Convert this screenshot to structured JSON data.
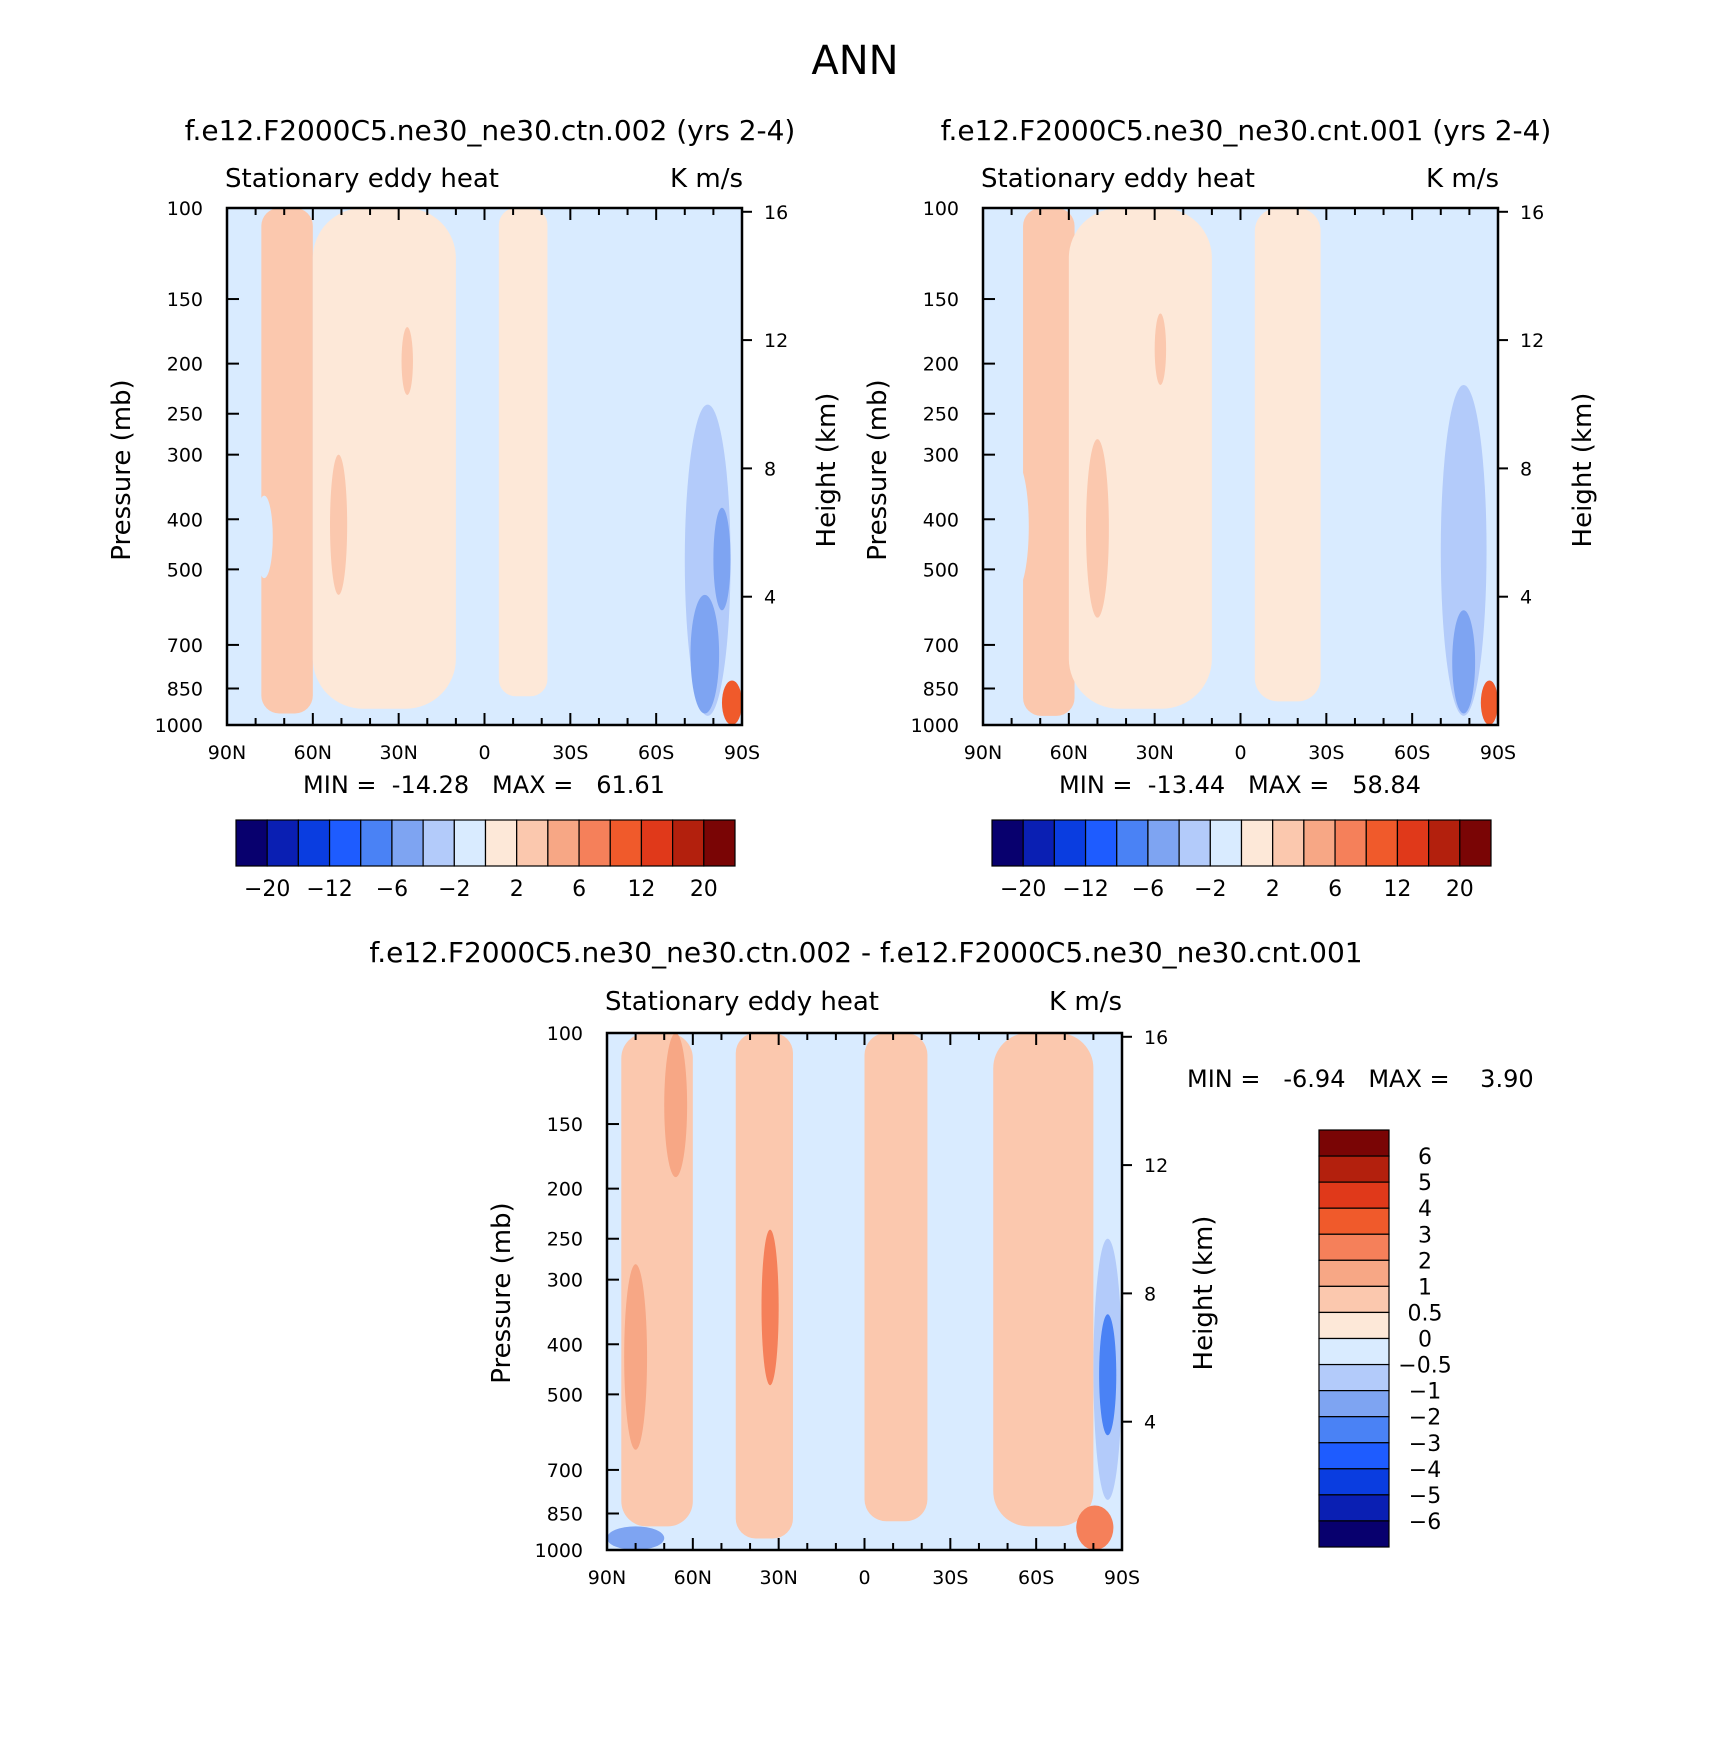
{
  "title": "ANN",
  "colors": {
    "abs_scale": [
      "#08006e",
      "#0a1fb3",
      "#0a3de0",
      "#1e5cff",
      "#4a82f5",
      "#7ea4f2",
      "#b3cbfa",
      "#d9ebff",
      "#fde8d8",
      "#fbc8ae",
      "#f7a785",
      "#f5805a",
      "#f05a2b",
      "#e0391a",
      "#b3200d",
      "#7a0505"
    ],
    "diff_scale": [
      "#08006e",
      "#0a1fb3",
      "#0a3de0",
      "#1e5cff",
      "#4a82f5",
      "#7ea4f2",
      "#b3cbfa",
      "#d9ebff",
      "#fde8d8",
      "#fbc8ae",
      "#f7a785",
      "#f5805a",
      "#f05a2b",
      "#e0391a",
      "#b3200d",
      "#7a0505"
    ]
  },
  "chart_data": [
    {
      "type": "heatmap",
      "panel_title": "f.e12.F2000C5.ne30_ne30.ctn.002 (yrs 2-4)",
      "left_label": "Stationary eddy heat",
      "right_label": "K m/s",
      "ylabel": "Pressure (mb)",
      "ylabel_right": "Height (km)",
      "x_ticks": [
        "90N",
        "60N",
        "30N",
        "0",
        "30S",
        "60S",
        "90S"
      ],
      "y_ticks": [
        100,
        150,
        200,
        250,
        300,
        400,
        500,
        700,
        850,
        1000
      ],
      "y_ticks_right": [
        16,
        12,
        8,
        4
      ],
      "stats": "MIN =  -14.28   MAX =   61.61",
      "colorbar_labels": [
        "-20",
        "-12",
        "-6",
        "-2",
        "2",
        "6",
        "12",
        "20"
      ],
      "colorbar_levels": [
        -20,
        -16,
        -12,
        -8,
        -6,
        -4,
        -2,
        0,
        2,
        4,
        6,
        8,
        12,
        16,
        20
      ],
      "features": [
        {
          "kind": "band",
          "lat": [
            -78,
            -60
          ],
          "p": [
            100,
            950
          ],
          "level": 2
        },
        {
          "kind": "band",
          "lat": [
            -60,
            -10
          ],
          "p": [
            100,
            930
          ],
          "level": 1
        },
        {
          "kind": "band",
          "lat": [
            5,
            22
          ],
          "p": [
            100,
            880
          ],
          "level": 1
        },
        {
          "kind": "blob",
          "lat": [
            -54,
            -48
          ],
          "p": [
            300,
            560
          ],
          "level": 3
        },
        {
          "kind": "blob",
          "lat": [
            -29,
            -25
          ],
          "p": [
            170,
            230
          ],
          "level": 2
        },
        {
          "kind": "blob",
          "lat": [
            -80,
            -74
          ],
          "p": [
            360,
            520
          ],
          "level": -2
        },
        {
          "kind": "blob",
          "lat": [
            43,
            55
          ],
          "p": [
            100,
            135
          ],
          "level": -2
        },
        {
          "kind": "blob",
          "lat": [
            70,
            86
          ],
          "p": [
            240,
            960
          ],
          "level": -3
        },
        {
          "kind": "blob",
          "lat": [
            72,
            82
          ],
          "p": [
            560,
            950
          ],
          "level": -6
        },
        {
          "kind": "blob",
          "lat": [
            80,
            86
          ],
          "p": [
            380,
            600
          ],
          "level": -6
        },
        {
          "kind": "blob",
          "lat": [
            83,
            90
          ],
          "p": [
            820,
            1000
          ],
          "level": 8
        }
      ]
    },
    {
      "type": "heatmap",
      "panel_title": "f.e12.F2000C5.ne30_ne30.cnt.001 (yrs 2-4)",
      "left_label": "Stationary eddy heat",
      "right_label": "K m/s",
      "ylabel": "Pressure (mb)",
      "ylabel_right": "Height (km)",
      "x_ticks": [
        "90N",
        "60N",
        "30N",
        "0",
        "30S",
        "60S",
        "90S"
      ],
      "y_ticks": [
        100,
        150,
        200,
        250,
        300,
        400,
        500,
        700,
        850,
        1000
      ],
      "y_ticks_right": [
        16,
        12,
        8,
        4
      ],
      "stats": "MIN =  -13.44   MAX =   58.84",
      "colorbar_labels": [
        "-20",
        "-12",
        "-6",
        "-2",
        "2",
        "6",
        "12",
        "20"
      ],
      "colorbar_levels": [
        -20,
        -16,
        -12,
        -8,
        -6,
        -4,
        -2,
        0,
        2,
        4,
        6,
        8,
        12,
        16,
        20
      ],
      "features": [
        {
          "kind": "band",
          "lat": [
            -76,
            -58
          ],
          "p": [
            100,
            960
          ],
          "level": 2
        },
        {
          "kind": "band",
          "lat": [
            -60,
            -10
          ],
          "p": [
            100,
            930
          ],
          "level": 1
        },
        {
          "kind": "band",
          "lat": [
            5,
            28
          ],
          "p": [
            100,
            900
          ],
          "level": 1
        },
        {
          "kind": "blob",
          "lat": [
            -54,
            -46
          ],
          "p": [
            280,
            620
          ],
          "level": 3
        },
        {
          "kind": "blob",
          "lat": [
            -30,
            -26
          ],
          "p": [
            160,
            220
          ],
          "level": 2
        },
        {
          "kind": "blob",
          "lat": [
            -83,
            -74
          ],
          "p": [
            310,
            550
          ],
          "level": -2
        },
        {
          "kind": "blob",
          "lat": [
            55,
            66
          ],
          "p": [
            100,
            140
          ],
          "level": -2
        },
        {
          "kind": "blob",
          "lat": [
            70,
            86
          ],
          "p": [
            220,
            960
          ],
          "level": -3
        },
        {
          "kind": "blob",
          "lat": [
            74,
            82
          ],
          "p": [
            600,
            950
          ],
          "level": -6
        },
        {
          "kind": "blob",
          "lat": [
            84,
            90
          ],
          "p": [
            820,
            1000
          ],
          "level": 8
        }
      ]
    },
    {
      "type": "heatmap",
      "panel_title": "f.e12.F2000C5.ne30_ne30.ctn.002 - f.e12.F2000C5.ne30_ne30.cnt.001",
      "left_label": "Stationary eddy heat",
      "right_label": "K m/s",
      "ylabel": "Pressure (mb)",
      "ylabel_right": "Height (km)",
      "x_ticks": [
        "90N",
        "60N",
        "30N",
        "0",
        "30S",
        "60S",
        "90S"
      ],
      "y_ticks": [
        100,
        150,
        200,
        250,
        300,
        400,
        500,
        700,
        850,
        1000
      ],
      "y_ticks_right": [
        16,
        12,
        8,
        4
      ],
      "stats": "MIN =   -6.94   MAX =    3.90",
      "colorbar_labels": [
        "6",
        "5",
        "4",
        "3",
        "2",
        "1",
        "0.5",
        "0",
        "-0.5",
        "-1",
        "-2",
        "-3",
        "-4",
        "-5",
        "-6"
      ],
      "colorbar_levels": [
        -6,
        -5,
        -4,
        -3,
        -2,
        -1,
        -0.5,
        0,
        0.5,
        1,
        2,
        3,
        4,
        5,
        6
      ],
      "features": [
        {
          "kind": "band",
          "lat": [
            -85,
            -60
          ],
          "p": [
            100,
            900
          ],
          "level": 0.5
        },
        {
          "kind": "band",
          "lat": [
            -45,
            -25
          ],
          "p": [
            100,
            950
          ],
          "level": 0.5
        },
        {
          "kind": "band",
          "lat": [
            0,
            22
          ],
          "p": [
            100,
            880
          ],
          "level": 0.5
        },
        {
          "kind": "band",
          "lat": [
            45,
            80
          ],
          "p": [
            100,
            900
          ],
          "level": 0.5
        },
        {
          "kind": "blob",
          "lat": [
            -70,
            -62
          ],
          "p": [
            100,
            190
          ],
          "level": 1
        },
        {
          "kind": "blob",
          "lat": [
            -84,
            -76
          ],
          "p": [
            280,
            640
          ],
          "level": 1
        },
        {
          "kind": "blob",
          "lat": [
            -36,
            -30
          ],
          "p": [
            240,
            480
          ],
          "level": 2
        },
        {
          "kind": "blob",
          "lat": [
            -90,
            -70
          ],
          "p": [
            900,
            1000
          ],
          "level": -2
        },
        {
          "kind": "blob",
          "lat": [
            80,
            90
          ],
          "p": [
            250,
            800
          ],
          "level": -1
        },
        {
          "kind": "blob",
          "lat": [
            82,
            88
          ],
          "p": [
            350,
            600
          ],
          "level": -3
        },
        {
          "kind": "blob",
          "lat": [
            74,
            87
          ],
          "p": [
            820,
            1000
          ],
          "level": 2
        }
      ]
    }
  ]
}
